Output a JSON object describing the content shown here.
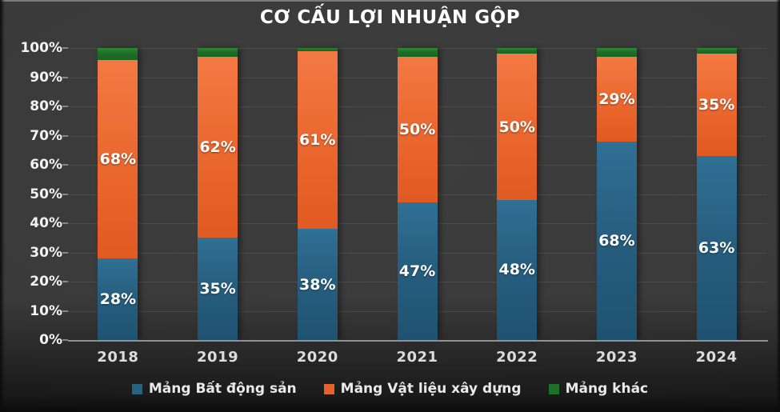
{
  "chart_data": {
    "type": "bar",
    "variant": "stacked-percent",
    "title": "CƠ CẤU LỢI NHUẬN GỘP",
    "categories": [
      "2018",
      "2019",
      "2020",
      "2021",
      "2022",
      "2023",
      "2024"
    ],
    "series": [
      {
        "name": "Mảng Bất động sản",
        "color": "#27627f",
        "gradient": [
          "#2f7094",
          "#275f80",
          "#1f5270"
        ],
        "values": [
          28,
          35,
          38,
          47,
          48,
          68,
          63
        ],
        "labels": [
          "28%",
          "35%",
          "38%",
          "47%",
          "48%",
          "68%",
          "63%"
        ]
      },
      {
        "name": "Mảng Vật liệu xây dựng",
        "color": "#e5622a",
        "gradient": [
          "#f37943",
          "#ec6a31",
          "#e05a22"
        ],
        "values": [
          68,
          62,
          61,
          50,
          50,
          29,
          35
        ],
        "labels": [
          "68%",
          "62%",
          "61%",
          "50%",
          "50%",
          "29%",
          "35%"
        ]
      },
      {
        "name": "Mảng khác",
        "color": "#1e7026",
        "gradient": [
          "#2c8a34",
          "#1e6f26",
          "#1a6322"
        ],
        "values": [
          4,
          3,
          1,
          3,
          2,
          3,
          2
        ],
        "labels": [
          "",
          "",
          "",
          "",
          "",
          "",
          ""
        ]
      }
    ],
    "xlabel": "",
    "ylabel": "",
    "ylim": [
      0,
      100
    ],
    "y_ticks": [
      "0%",
      "10%",
      "20%",
      "30%",
      "40%",
      "50%",
      "60%",
      "70%",
      "80%",
      "90%",
      "100%"
    ],
    "grid": true,
    "legend_position": "bottom"
  },
  "style": {
    "background": "#3a3a3a",
    "grid_color": "rgba(255,255,255,0.085)",
    "axis_color": "#a3a3a3",
    "text_color": "#ffffff"
  }
}
